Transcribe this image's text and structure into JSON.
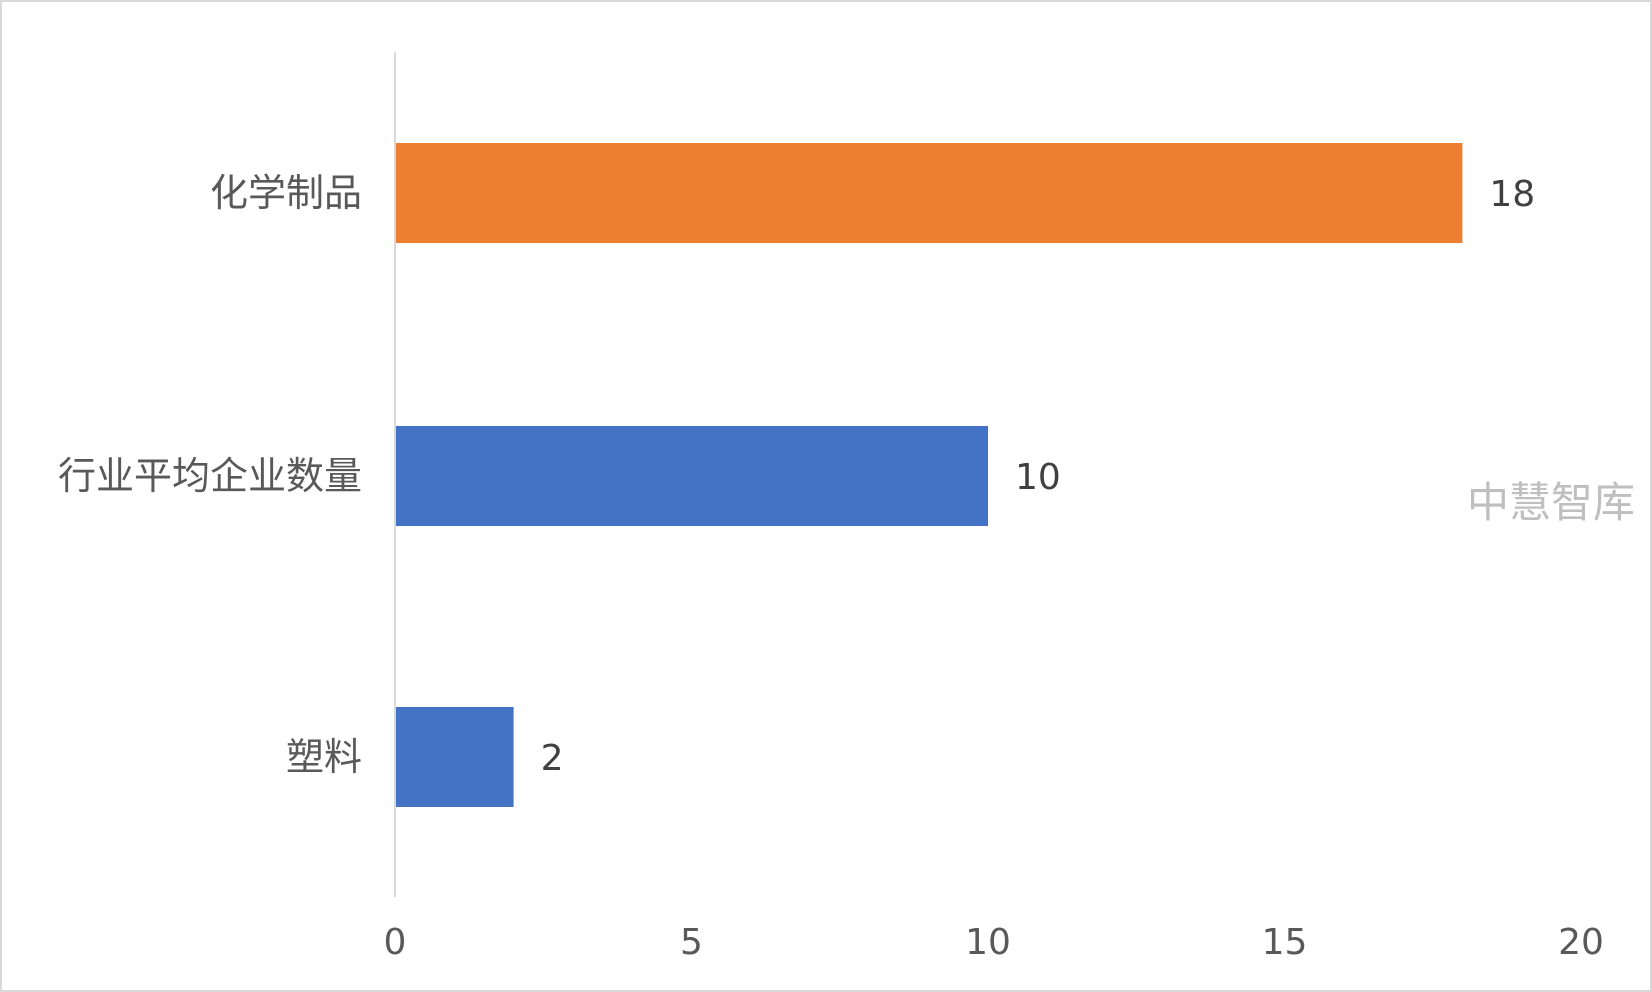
{
  "chart_data": {
    "type": "bar",
    "orientation": "horizontal",
    "categories": [
      "化学制品",
      "行业平均企业数量",
      "塑料"
    ],
    "values": [
      18,
      10,
      2
    ],
    "bar_colors": [
      "#ED7D31",
      "#4472C4",
      "#4472C4"
    ],
    "xlim": [
      0,
      20
    ],
    "xticks": [
      0,
      5,
      10,
      15,
      20
    ],
    "grid": false,
    "data_labels": true
  },
  "watermark": "中慧智库",
  "colors": {
    "highlight": "#ED7D31",
    "default": "#4472C4",
    "axis_line": "#d9d9d9",
    "text": "#595959"
  }
}
